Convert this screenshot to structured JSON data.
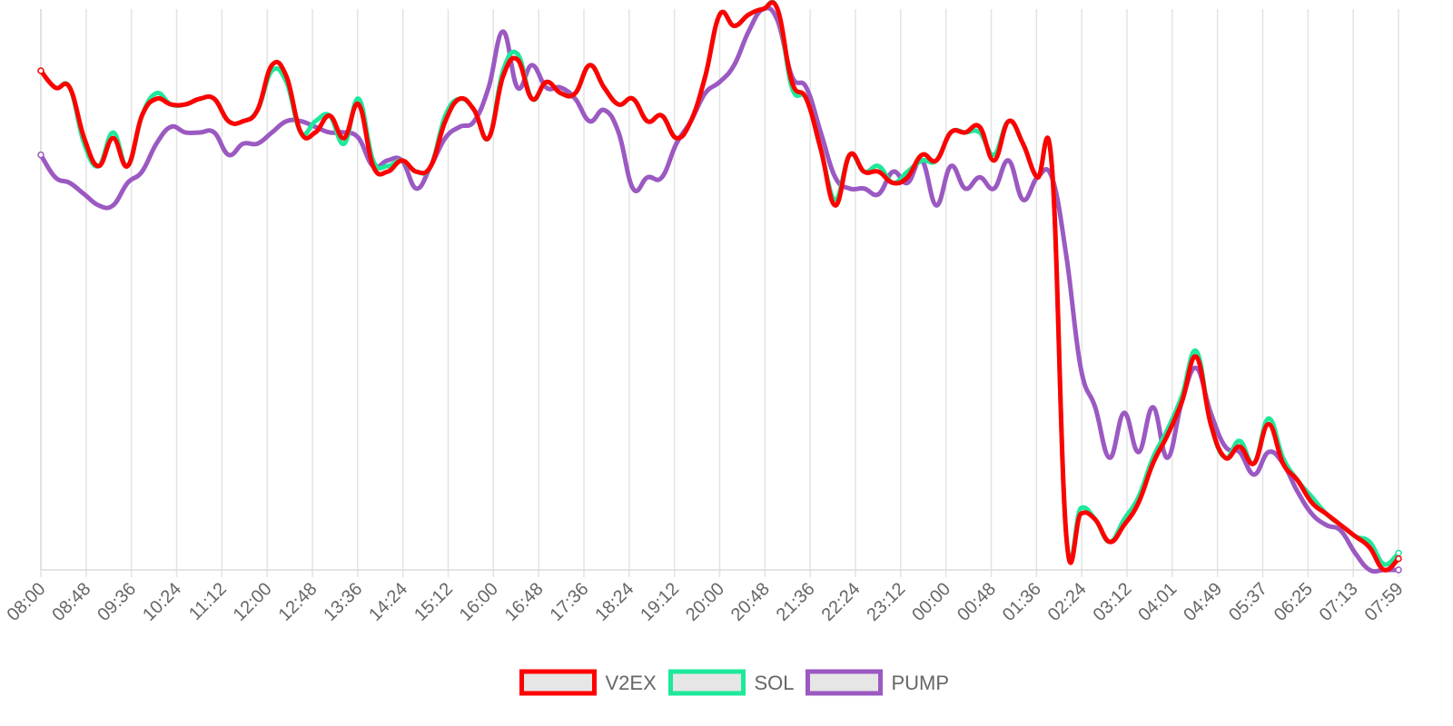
{
  "chart_data": {
    "type": "line",
    "title": "",
    "xlabel": "",
    "ylabel": "",
    "ylim": [
      0,
      100
    ],
    "grid": "vertical",
    "legend_position": "bottom",
    "x_ticks": [
      "08:00",
      "08:48",
      "09:36",
      "10:24",
      "11:12",
      "12:00",
      "12:48",
      "13:36",
      "14:24",
      "15:12",
      "16:00",
      "16:48",
      "17:36",
      "18:24",
      "19:12",
      "20:00",
      "20:48",
      "21:36",
      "22:24",
      "23:12",
      "00:00",
      "00:48",
      "01:36",
      "02:24",
      "03:12",
      "04:01",
      "04:49",
      "05:37",
      "06:25",
      "07:13",
      "07:59"
    ],
    "series": [
      {
        "name": "V2EX",
        "color": "#ff0000",
        "values": [
          89,
          86,
          86,
          77,
          72,
          77,
          72,
          81,
          84,
          83,
          83,
          84,
          84,
          80,
          80,
          82,
          90,
          88,
          78,
          78,
          81,
          77,
          83,
          72,
          71,
          73,
          71,
          72,
          80,
          84,
          82,
          77,
          88,
          91,
          84,
          87,
          85,
          85,
          90,
          86,
          83,
          84,
          80,
          81,
          77,
          80,
          88,
          99,
          97,
          99,
          100,
          100,
          87,
          84,
          75,
          65,
          74,
          71,
          71,
          69,
          70,
          74,
          73,
          78,
          78,
          79,
          73,
          80,
          76,
          70,
          72,
          6,
          10,
          9,
          5,
          8,
          12,
          19,
          24,
          30,
          38,
          26,
          20,
          22,
          19,
          26,
          19,
          16,
          12,
          10,
          8,
          6,
          4,
          0,
          2
        ]
      },
      {
        "name": "SOL",
        "color": "#1ee89a",
        "values": [
          89,
          86,
          86,
          76,
          72,
          78,
          72,
          81,
          85,
          83,
          83,
          84,
          84,
          80,
          80,
          82,
          89,
          87,
          78,
          80,
          81,
          76,
          84,
          73,
          72,
          73,
          71,
          72,
          81,
          84,
          82,
          77,
          89,
          92,
          84,
          87,
          85,
          85,
          90,
          86,
          83,
          84,
          80,
          81,
          77,
          80,
          88,
          99,
          97,
          99,
          100,
          100,
          86,
          84,
          75,
          66,
          74,
          71,
          72,
          69,
          71,
          73,
          73,
          78,
          78,
          78,
          74,
          80,
          76,
          70,
          72,
          6,
          11,
          9,
          5,
          9,
          13,
          20,
          25,
          31,
          39,
          26,
          20,
          23,
          19,
          27,
          20,
          16,
          13,
          10,
          8,
          6,
          5,
          1,
          3
        ]
      },
      {
        "name": "PUMP",
        "color": "#9b59c2",
        "values": [
          74,
          70,
          69,
          67,
          65,
          65,
          69,
          71,
          76,
          79,
          78,
          78,
          78,
          74,
          76,
          76,
          78,
          80,
          80,
          79,
          78,
          78,
          77,
          72,
          73,
          73,
          68,
          72,
          77,
          79,
          80,
          86,
          96,
          86,
          90,
          86,
          86,
          84,
          80,
          82,
          78,
          68,
          70,
          70,
          76,
          80,
          85,
          87,
          90,
          96,
          100,
          98,
          88,
          86,
          78,
          70,
          68,
          68,
          67,
          71,
          69,
          73,
          65,
          72,
          68,
          70,
          68,
          73,
          66,
          70,
          70,
          56,
          36,
          29,
          20,
          28,
          21,
          29,
          20,
          30,
          36,
          28,
          22,
          21,
          17,
          21,
          19,
          14,
          10,
          8,
          7,
          3,
          0,
          0,
          0
        ]
      }
    ]
  }
}
